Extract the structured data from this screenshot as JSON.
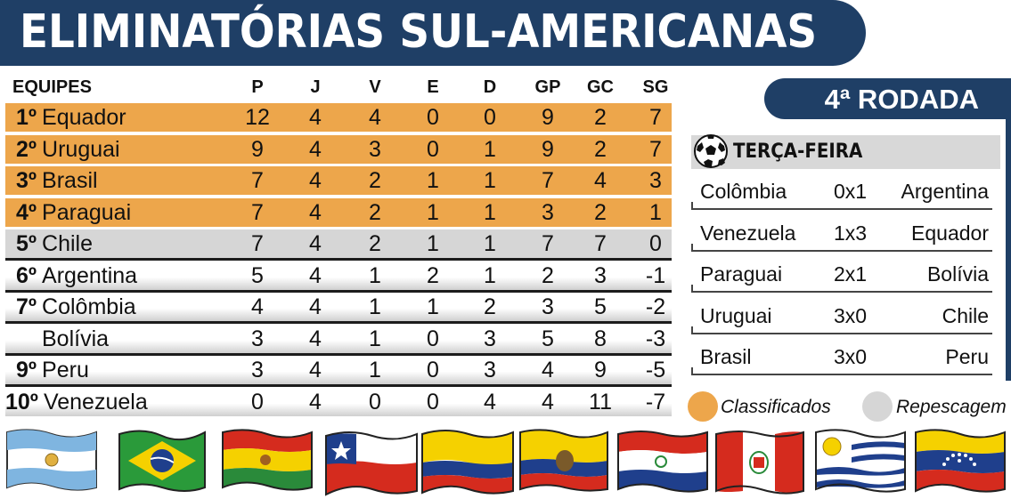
{
  "title": "ELIMINATÓRIAS SUL-AMERICANAS",
  "table": {
    "headers": [
      "EQUIPES",
      "P",
      "J",
      "V",
      "E",
      "D",
      "GP",
      "GC",
      "SG"
    ],
    "rows": [
      {
        "pos": "1º",
        "team": "Equador",
        "P": "12",
        "J": "4",
        "V": "4",
        "E": "0",
        "D": "0",
        "GP": "9",
        "GC": "2",
        "SG": "7",
        "status": "classificado"
      },
      {
        "pos": "2º",
        "team": "Uruguai",
        "P": "9",
        "J": "4",
        "V": "3",
        "E": "0",
        "D": "1",
        "GP": "9",
        "GC": "2",
        "SG": "7",
        "status": "classificado"
      },
      {
        "pos": "3º",
        "team": "Brasil",
        "P": "7",
        "J": "4",
        "V": "2",
        "E": "1",
        "D": "1",
        "GP": "7",
        "GC": "4",
        "SG": "3",
        "status": "classificado"
      },
      {
        "pos": "4º",
        "team": "Paraguai",
        "P": "7",
        "J": "4",
        "V": "2",
        "E": "1",
        "D": "1",
        "GP": "3",
        "GC": "2",
        "SG": "1",
        "status": "classificado"
      },
      {
        "pos": "5º",
        "team": "Chile",
        "P": "7",
        "J": "4",
        "V": "2",
        "E": "1",
        "D": "1",
        "GP": "7",
        "GC": "7",
        "SG": "0",
        "status": "repescagem"
      },
      {
        "pos": "6º",
        "team": "Argentina",
        "P": "5",
        "J": "4",
        "V": "1",
        "E": "2",
        "D": "1",
        "GP": "2",
        "GC": "3",
        "SG": "-1",
        "status": "none"
      },
      {
        "pos": "7º",
        "team": "Colômbia",
        "P": "4",
        "J": "4",
        "V": "1",
        "E": "1",
        "D": "2",
        "GP": "3",
        "GC": "5",
        "SG": "-2",
        "status": "none"
      },
      {
        "pos": "",
        "team": "Bolívia",
        "P": "3",
        "J": "4",
        "V": "1",
        "E": "0",
        "D": "3",
        "GP": "5",
        "GC": "8",
        "SG": "-3",
        "status": "none"
      },
      {
        "pos": "9º",
        "team": "Peru",
        "P": "3",
        "J": "4",
        "V": "1",
        "E": "0",
        "D": "3",
        "GP": "4",
        "GC": "9",
        "SG": "-5",
        "status": "none"
      },
      {
        "pos": "10º",
        "team": "Venezuela",
        "P": "0",
        "J": "4",
        "V": "0",
        "E": "0",
        "D": "4",
        "GP": "4",
        "GC": "11",
        "SG": "-7",
        "status": "none"
      }
    ]
  },
  "round": {
    "label": "4ª RODADA",
    "day": "TERÇA-FEIRA",
    "matches": [
      {
        "home": "Colômbia",
        "score": "0x1",
        "away": "Argentina"
      },
      {
        "home": "Venezuela",
        "score": "1x3",
        "away": "Equador"
      },
      {
        "home": "Paraguai",
        "score": "2x1",
        "away": "Bolívia"
      },
      {
        "home": "Uruguai",
        "score": "3x0",
        "away": "Chile"
      },
      {
        "home": "Brasil",
        "score": "3x0",
        "away": "Peru"
      }
    ]
  },
  "legend": {
    "classified_label": "Classificados",
    "classified_color": "#eda64b",
    "playoff_label": "Repescagem",
    "playoff_color": "#d6d6d6"
  },
  "flags": [
    "argentina-flag",
    "brazil-flag",
    "bolivia-flag",
    "chile-flag",
    "colombia-flag",
    "ecuador-flag",
    "paraguay-flag",
    "peru-flag",
    "uruguay-flag",
    "venezuela-flag"
  ],
  "colors": {
    "banner": "#1f3f66"
  }
}
